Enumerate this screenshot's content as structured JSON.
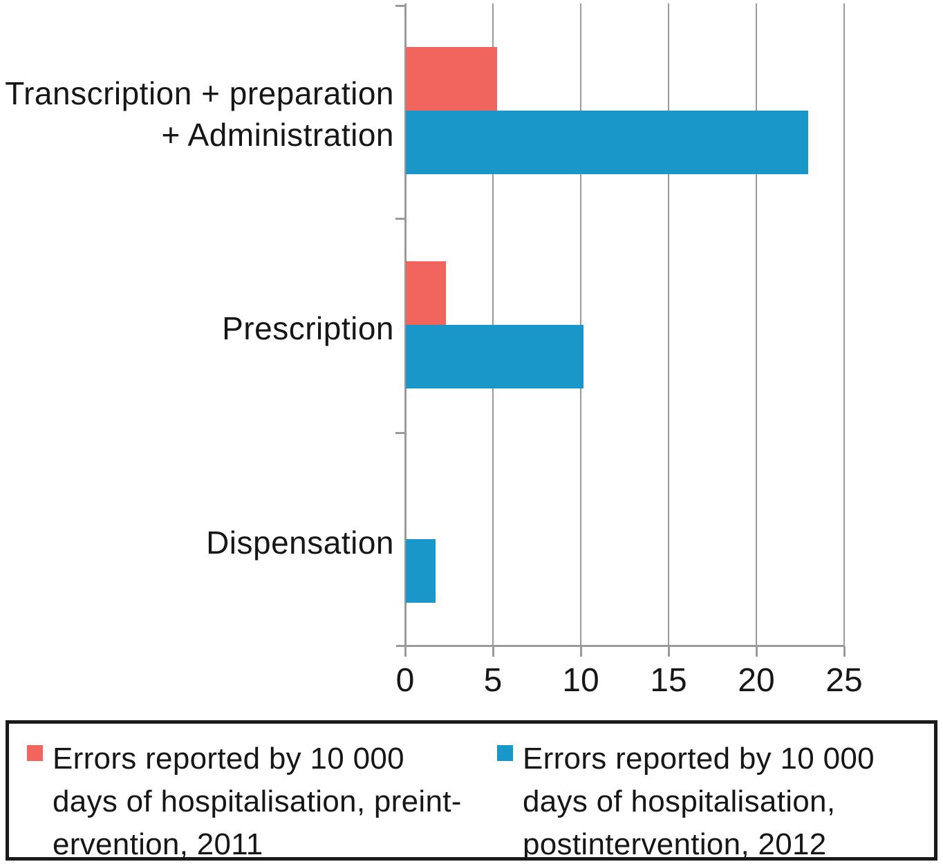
{
  "chart_data": {
    "type": "bar",
    "orientation": "horizontal",
    "title": "",
    "xlabel": "",
    "ylabel": "",
    "xlim": [
      0,
      25
    ],
    "xticks": [
      "0",
      "5",
      "10",
      "15",
      "20",
      "25"
    ],
    "grid": true,
    "legend_position": "bottom-box",
    "categories": [
      "Transcription + preparation\n+ Administration",
      "Prescription",
      "Dispensation"
    ],
    "series": [
      {
        "key": "preintervention",
        "name": "Errors reported by 10 000 days of hospitalisation, preintervention, 2011",
        "color": "#f1655e",
        "values": [
          5.2,
          2.3,
          0
        ]
      },
      {
        "key": "postintervention",
        "name": "Errors reported by 10 000 days of hospitalisation, postintervention, 2012",
        "color": "#1997c9",
        "values": [
          22.9,
          10.1,
          1.7
        ]
      }
    ]
  },
  "legend": {
    "items": [
      {
        "text": "Errors reported by 10 000\ndays of hospitalisation, preint-\nervention, 2011",
        "color": "#f1655e",
        "icon": "square-swatch"
      },
      {
        "text": "Errors reported by 10 000\ndays of hospitalisation,\npostintervention, 2012",
        "color": "#1997c9",
        "icon": "square-swatch"
      }
    ]
  },
  "colors": {
    "preintervention": "#f1655e",
    "postintervention": "#1997c9",
    "gridline": "#9a9a9a",
    "axis": "#9a9a9a",
    "text": "#161616",
    "legend_border": "#1a1a1a",
    "background": "#ffffff"
  }
}
